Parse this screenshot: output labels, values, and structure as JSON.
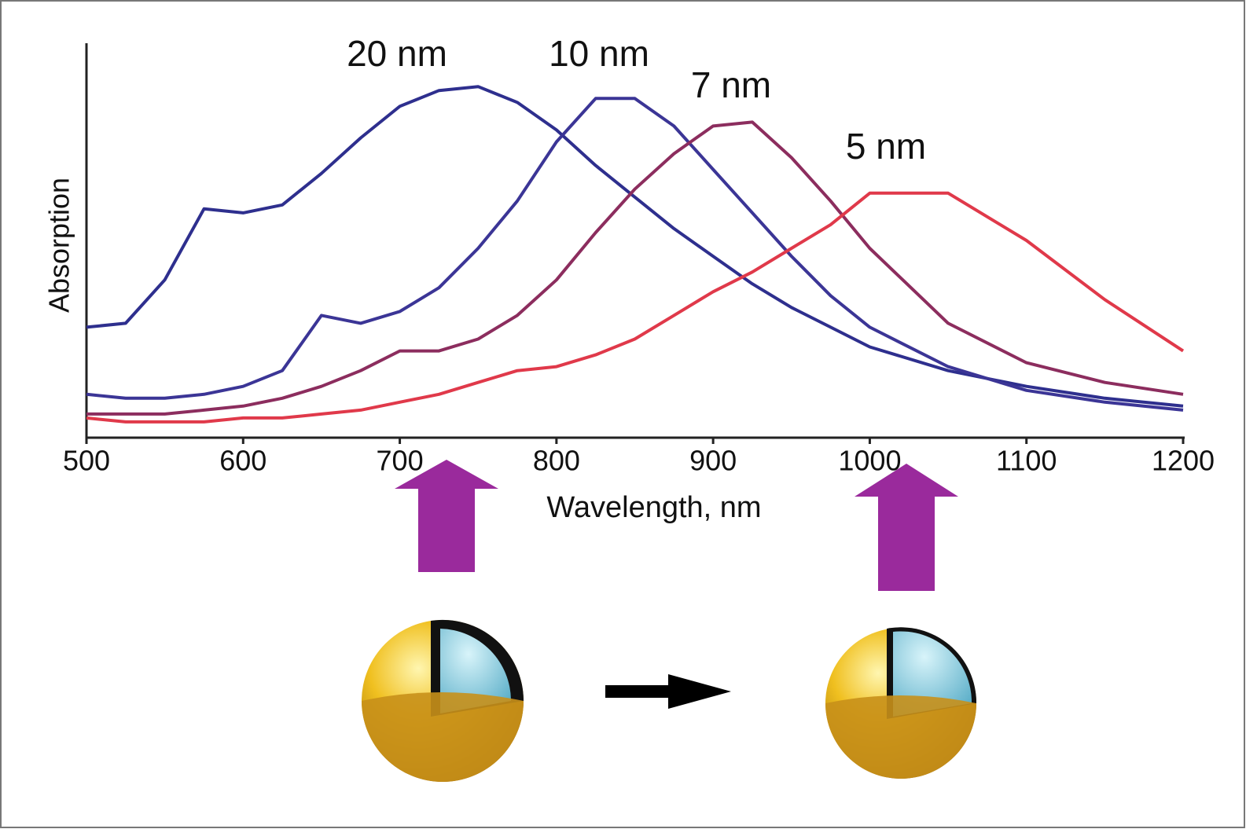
{
  "chart_data": {
    "type": "line",
    "x_label": "Wavelength, nm",
    "y_label": "Absorption",
    "x": [
      500,
      525,
      550,
      575,
      600,
      625,
      650,
      675,
      700,
      725,
      750,
      775,
      800,
      825,
      850,
      875,
      900,
      925,
      950,
      975,
      1000,
      1050,
      1100,
      1150,
      1200
    ],
    "series": [
      {
        "name": "20 nm",
        "color": "#2e2f8e",
        "values": [
          0.28,
          0.29,
          0.4,
          0.58,
          0.57,
          0.59,
          0.67,
          0.76,
          0.84,
          0.88,
          0.89,
          0.85,
          0.78,
          0.69,
          0.61,
          0.53,
          0.46,
          0.39,
          0.33,
          0.28,
          0.23,
          0.17,
          0.13,
          0.1,
          0.08
        ]
      },
      {
        "name": "10 nm",
        "color": "#3b3596",
        "values": [
          0.11,
          0.1,
          0.1,
          0.11,
          0.13,
          0.17,
          0.31,
          0.29,
          0.32,
          0.38,
          0.48,
          0.6,
          0.75,
          0.86,
          0.86,
          0.79,
          0.68,
          0.57,
          0.46,
          0.36,
          0.28,
          0.18,
          0.12,
          0.09,
          0.07
        ]
      },
      {
        "name": "7 nm",
        "color": "#8c2d5e",
        "values": [
          0.06,
          0.06,
          0.06,
          0.07,
          0.08,
          0.1,
          0.13,
          0.17,
          0.22,
          0.22,
          0.25,
          0.31,
          0.4,
          0.52,
          0.63,
          0.72,
          0.79,
          0.8,
          0.71,
          0.6,
          0.48,
          0.29,
          0.19,
          0.14,
          0.11
        ]
      },
      {
        "name": "5 nm",
        "color": "#e0394a",
        "values": [
          0.05,
          0.04,
          0.04,
          0.04,
          0.05,
          0.05,
          0.06,
          0.07,
          0.09,
          0.11,
          0.14,
          0.17,
          0.18,
          0.21,
          0.25,
          0.31,
          0.37,
          0.42,
          0.48,
          0.54,
          0.62,
          0.62,
          0.5,
          0.35,
          0.22
        ]
      }
    ],
    "xlim": [
      500,
      1200
    ],
    "xticks": [
      500,
      600,
      700,
      800,
      900,
      1000,
      1100,
      1200
    ],
    "ylim": [
      0,
      1
    ],
    "grid": false
  }
}
